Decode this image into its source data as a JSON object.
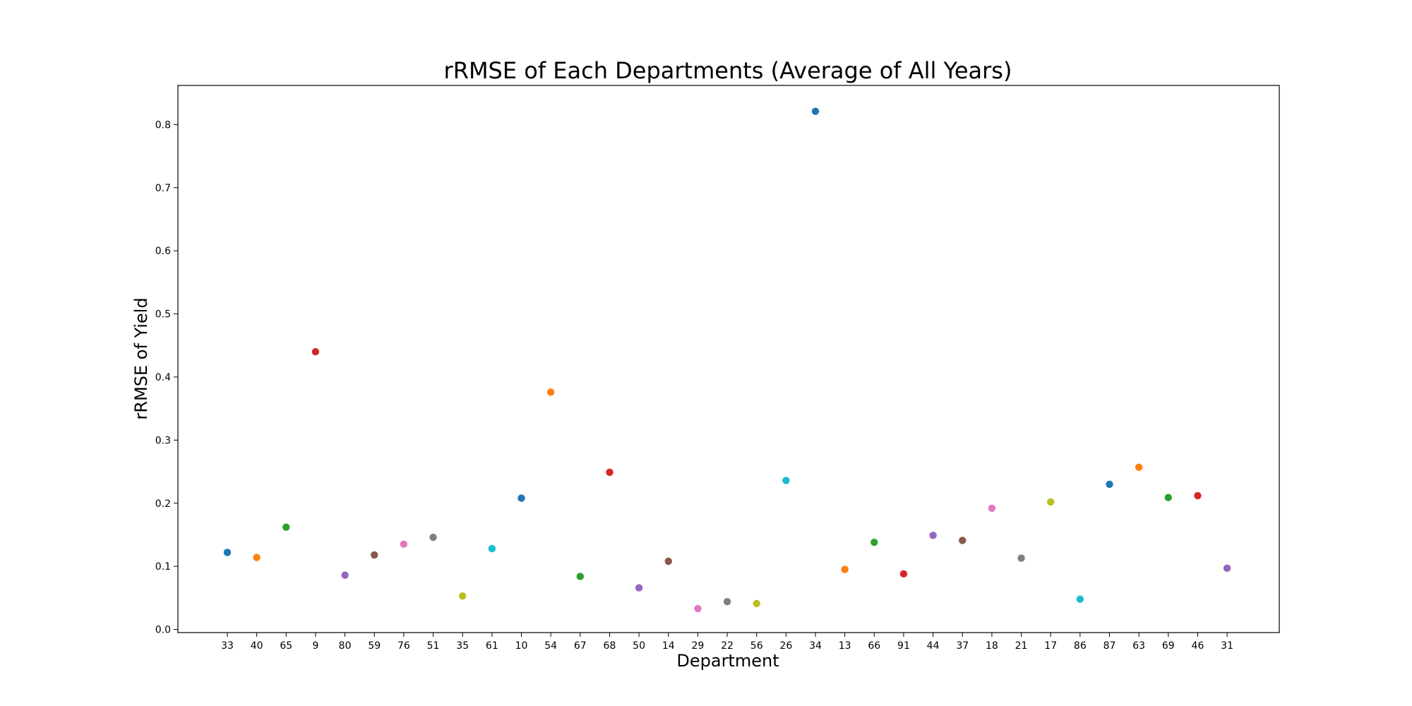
{
  "chart_data": {
    "type": "scatter",
    "title": "rRMSE of Each Departments (Average of All Years)",
    "xlabel": "Department",
    "ylabel": "rRMSE of Yield",
    "ylim": [
      -0.005,
      0.862
    ],
    "yticks": [
      "0.0",
      "0.1",
      "0.2",
      "0.3",
      "0.4",
      "0.5",
      "0.6",
      "0.7",
      "0.8"
    ],
    "grid": false,
    "legend": "none",
    "categories": [
      "33",
      "40",
      "65",
      "9",
      "80",
      "59",
      "76",
      "51",
      "35",
      "61",
      "10",
      "54",
      "67",
      "68",
      "50",
      "14",
      "29",
      "22",
      "56",
      "26",
      "34",
      "13",
      "66",
      "91",
      "44",
      "37",
      "18",
      "21",
      "17",
      "86",
      "87",
      "63",
      "69",
      "46",
      "31"
    ],
    "values": [
      0.122,
      0.114,
      0.162,
      0.44,
      0.086,
      0.118,
      0.135,
      0.146,
      0.053,
      0.128,
      0.208,
      0.376,
      0.084,
      0.249,
      0.066,
      0.108,
      0.033,
      0.044,
      0.041,
      0.236,
      0.821,
      0.095,
      0.138,
      0.088,
      0.149,
      0.141,
      0.192,
      0.113,
      0.202,
      0.048,
      0.23,
      0.257,
      0.209,
      0.212,
      0.097
    ],
    "colors": [
      "#1f77b4",
      "#ff7f0e",
      "#2ca02c",
      "#d62728",
      "#9467bd",
      "#8c564b",
      "#e377c2",
      "#7f7f7f",
      "#bcbd22",
      "#17becf"
    ]
  }
}
